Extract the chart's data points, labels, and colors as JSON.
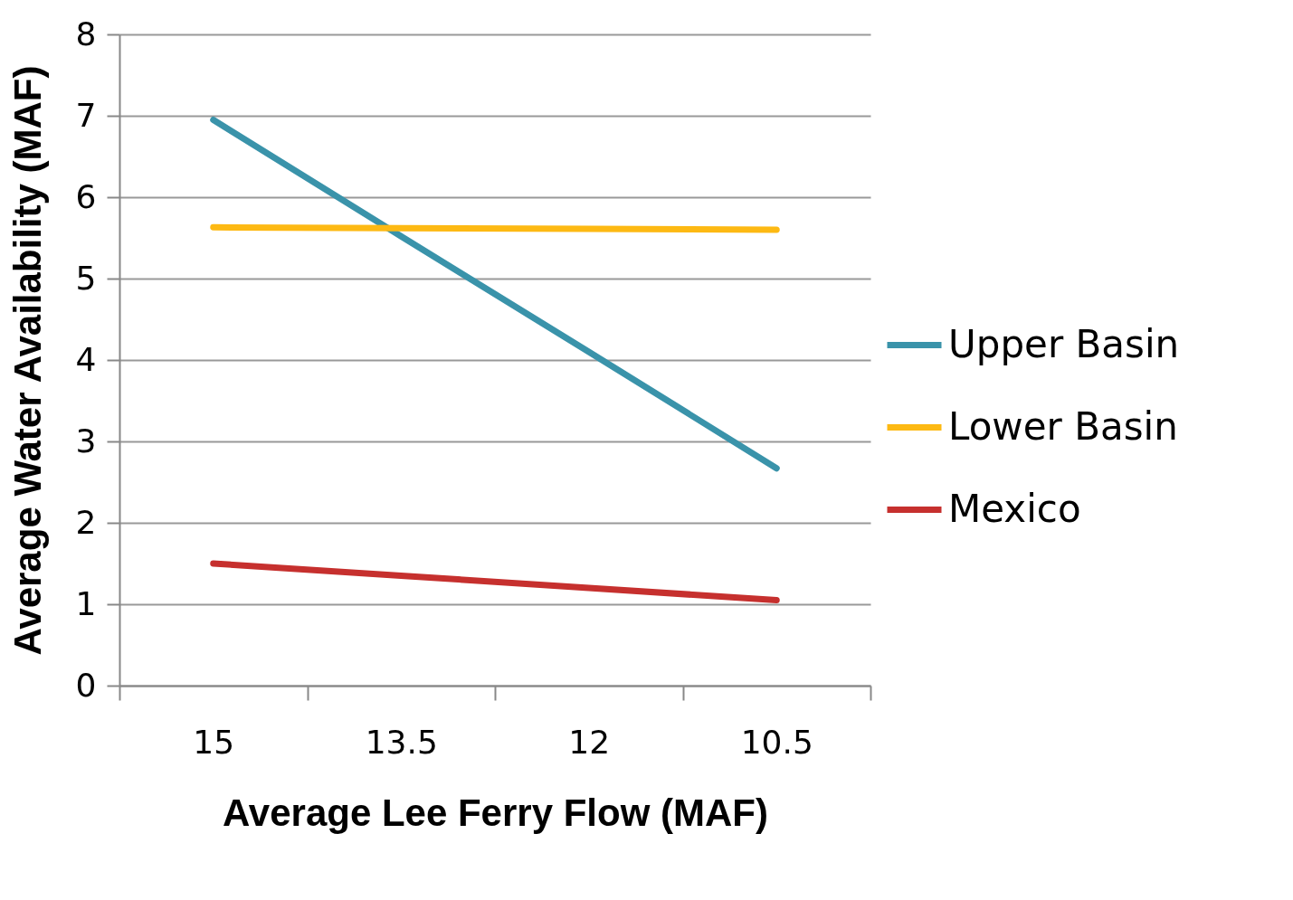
{
  "chart_data": {
    "type": "line",
    "xlabel": "Average Lee Ferry Flow (MAF)",
    "ylabel": "Average Water Availability (MAF)",
    "categories": [
      "15",
      "13.5",
      "12",
      "10.5"
    ],
    "series": [
      {
        "name": "Upper Basin",
        "color": "#3a93aa",
        "values": [
          6.95,
          5.52,
          4.1,
          2.67
        ]
      },
      {
        "name": "Lower Basin",
        "color": "#fdb913",
        "values": [
          5.63,
          5.62,
          5.61,
          5.6
        ]
      },
      {
        "name": "Mexico",
        "color": "#c6302e",
        "values": [
          1.5,
          1.35,
          1.2,
          1.05
        ]
      }
    ],
    "ylim": [
      0,
      8
    ],
    "yticks": [
      0,
      1,
      2,
      3,
      4,
      5,
      6,
      7,
      8
    ],
    "grid": "y",
    "legend": "right",
    "marker": "none"
  }
}
